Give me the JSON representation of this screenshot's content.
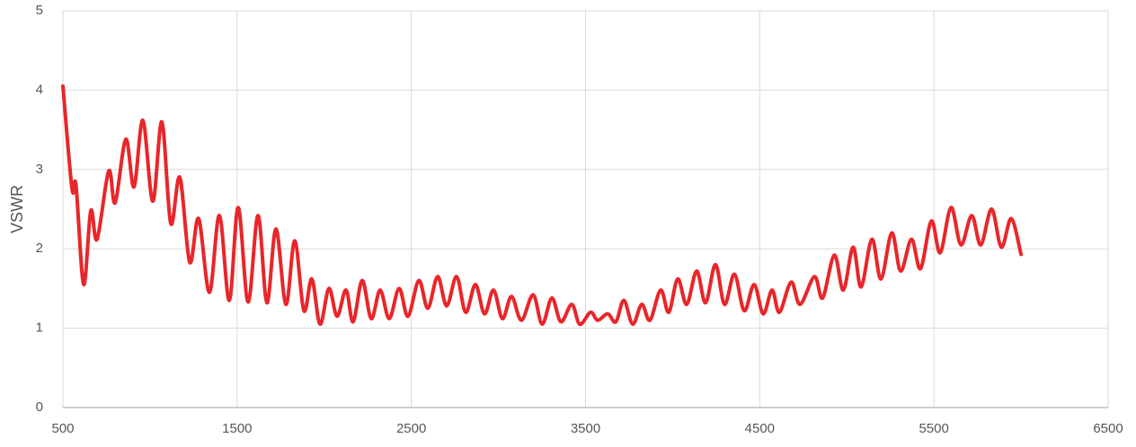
{
  "chart_data": {
    "type": "line",
    "ylabel": "VSWR",
    "x": [
      500,
      552,
      575,
      619,
      660,
      696,
      763,
      800,
      861,
      908,
      959,
      1016,
      1068,
      1119,
      1171,
      1228,
      1279,
      1341,
      1398,
      1455,
      1506,
      1563,
      1620,
      1671,
      1723,
      1780,
      1831,
      1883,
      1929,
      1976,
      2027,
      2074,
      2125,
      2166,
      2218,
      2270,
      2321,
      2373,
      2430,
      2481,
      2543,
      2595,
      2651,
      2703,
      2760,
      2812,
      2868,
      2920,
      2972,
      3023,
      3075,
      3132,
      3199,
      3251,
      3307,
      3359,
      3421,
      3467,
      3529,
      3570,
      3627,
      3674,
      3720,
      3771,
      3823,
      3870,
      3931,
      3978,
      4029,
      4081,
      4138,
      4189,
      4246,
      4298,
      4355,
      4411,
      4468,
      4520,
      4571,
      4613,
      4680,
      4732,
      4814,
      4861,
      4928,
      4980,
      5036,
      5082,
      5144,
      5196,
      5258,
      5309,
      5371,
      5423,
      5485,
      5536,
      5598,
      5655,
      5717,
      5769,
      5831,
      5887,
      5944,
      6000
    ],
    "series": [
      {
        "name": "VSWR",
        "color": "#e8262a",
        "values": [
          4.05,
          2.76,
          2.8,
          1.55,
          2.48,
          2.12,
          2.98,
          2.58,
          3.38,
          2.78,
          3.62,
          2.6,
          3.6,
          2.32,
          2.9,
          1.83,
          2.38,
          1.45,
          2.42,
          1.35,
          2.52,
          1.33,
          2.42,
          1.32,
          2.25,
          1.3,
          2.1,
          1.22,
          1.62,
          1.05,
          1.5,
          1.15,
          1.48,
          1.08,
          1.6,
          1.12,
          1.48,
          1.12,
          1.5,
          1.15,
          1.6,
          1.25,
          1.65,
          1.28,
          1.65,
          1.2,
          1.55,
          1.18,
          1.48,
          1.12,
          1.4,
          1.1,
          1.42,
          1.05,
          1.38,
          1.08,
          1.3,
          1.05,
          1.2,
          1.1,
          1.18,
          1.08,
          1.35,
          1.05,
          1.3,
          1.1,
          1.48,
          1.2,
          1.62,
          1.3,
          1.72,
          1.32,
          1.8,
          1.3,
          1.68,
          1.22,
          1.55,
          1.18,
          1.48,
          1.2,
          1.58,
          1.3,
          1.65,
          1.38,
          1.92,
          1.48,
          2.02,
          1.52,
          2.12,
          1.62,
          2.2,
          1.72,
          2.12,
          1.75,
          2.35,
          1.95,
          2.52,
          2.05,
          2.42,
          2.05,
          2.5,
          2.02,
          2.38,
          1.93
        ]
      }
    ],
    "xlim": [
      500,
      6500
    ],
    "xticks": [
      500,
      1500,
      2500,
      3500,
      4500,
      5500,
      6500
    ],
    "ylim": [
      0,
      5
    ],
    "yticks": [
      0,
      1,
      2,
      3,
      4,
      5
    ],
    "grid": true
  }
}
